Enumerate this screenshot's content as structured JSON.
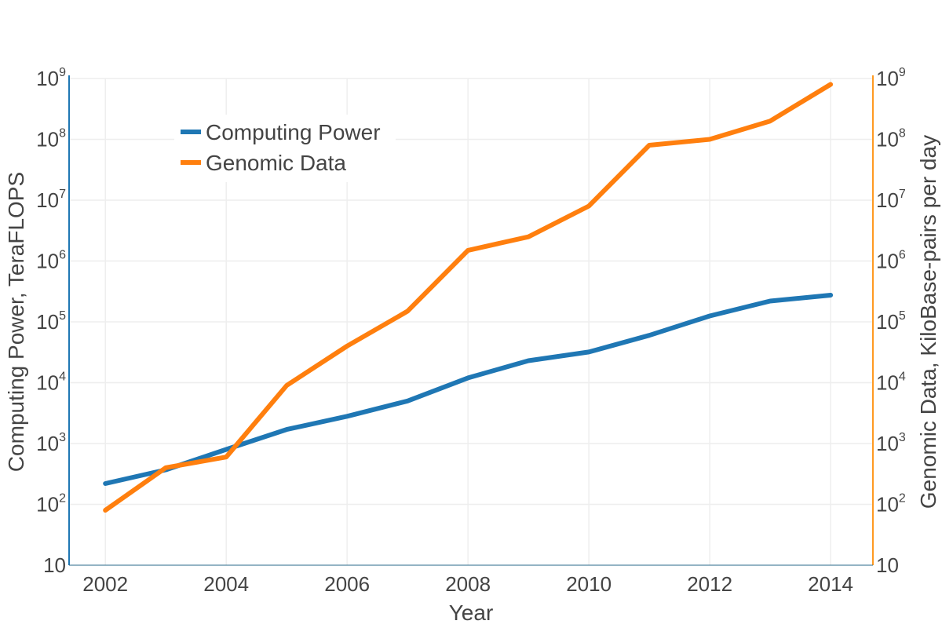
{
  "chart_data": {
    "type": "line",
    "title": "",
    "xlabel": "Year",
    "ylabel_left": "Computing Power, TeraFLOPS",
    "ylabel_right": "Genomic Data, KiloBase-pairs per day",
    "x": [
      2002,
      2003,
      2004,
      2005,
      2006,
      2007,
      2008,
      2009,
      2010,
      2011,
      2012,
      2013,
      2014
    ],
    "x_ticks": [
      2002,
      2004,
      2006,
      2008,
      2010,
      2012,
      2014
    ],
    "x_tick_labels": [
      "2002",
      "2004",
      "2006",
      "2008",
      "2010",
      "2012",
      "2014"
    ],
    "xlim": [
      2001.4,
      2014.7
    ],
    "y_scale": "log",
    "ylim": [
      10,
      1000000000
    ],
    "y_ticks": [
      {
        "base": "10",
        "exp": ""
      },
      {
        "base": "10",
        "exp": "2"
      },
      {
        "base": "10",
        "exp": "3"
      },
      {
        "base": "10",
        "exp": "4"
      },
      {
        "base": "10",
        "exp": "5"
      },
      {
        "base": "10",
        "exp": "6"
      },
      {
        "base": "10",
        "exp": "7"
      },
      {
        "base": "10",
        "exp": "8"
      },
      {
        "base": "10",
        "exp": "9"
      }
    ],
    "grid": true,
    "legend_position": "top-left",
    "series": [
      {
        "name": "Computing Power",
        "color": "#1f77b4",
        "axis": "left",
        "values": [
          220,
          370,
          800,
          1700,
          2800,
          5000,
          12000,
          23000,
          32000,
          60000,
          125000,
          220000,
          275000
        ]
      },
      {
        "name": "Genomic Data",
        "color": "#ff7f0e",
        "axis": "right",
        "values": [
          80,
          400,
          600,
          9000,
          40000,
          150000,
          1500000,
          2500000,
          8000000,
          80000000,
          100000000,
          200000000,
          800000000
        ]
      }
    ],
    "colors": {
      "left_axis": "#1f77b4",
      "right_axis": "#ff9a22",
      "grid": "#eeeeee",
      "text": "#444444"
    }
  }
}
